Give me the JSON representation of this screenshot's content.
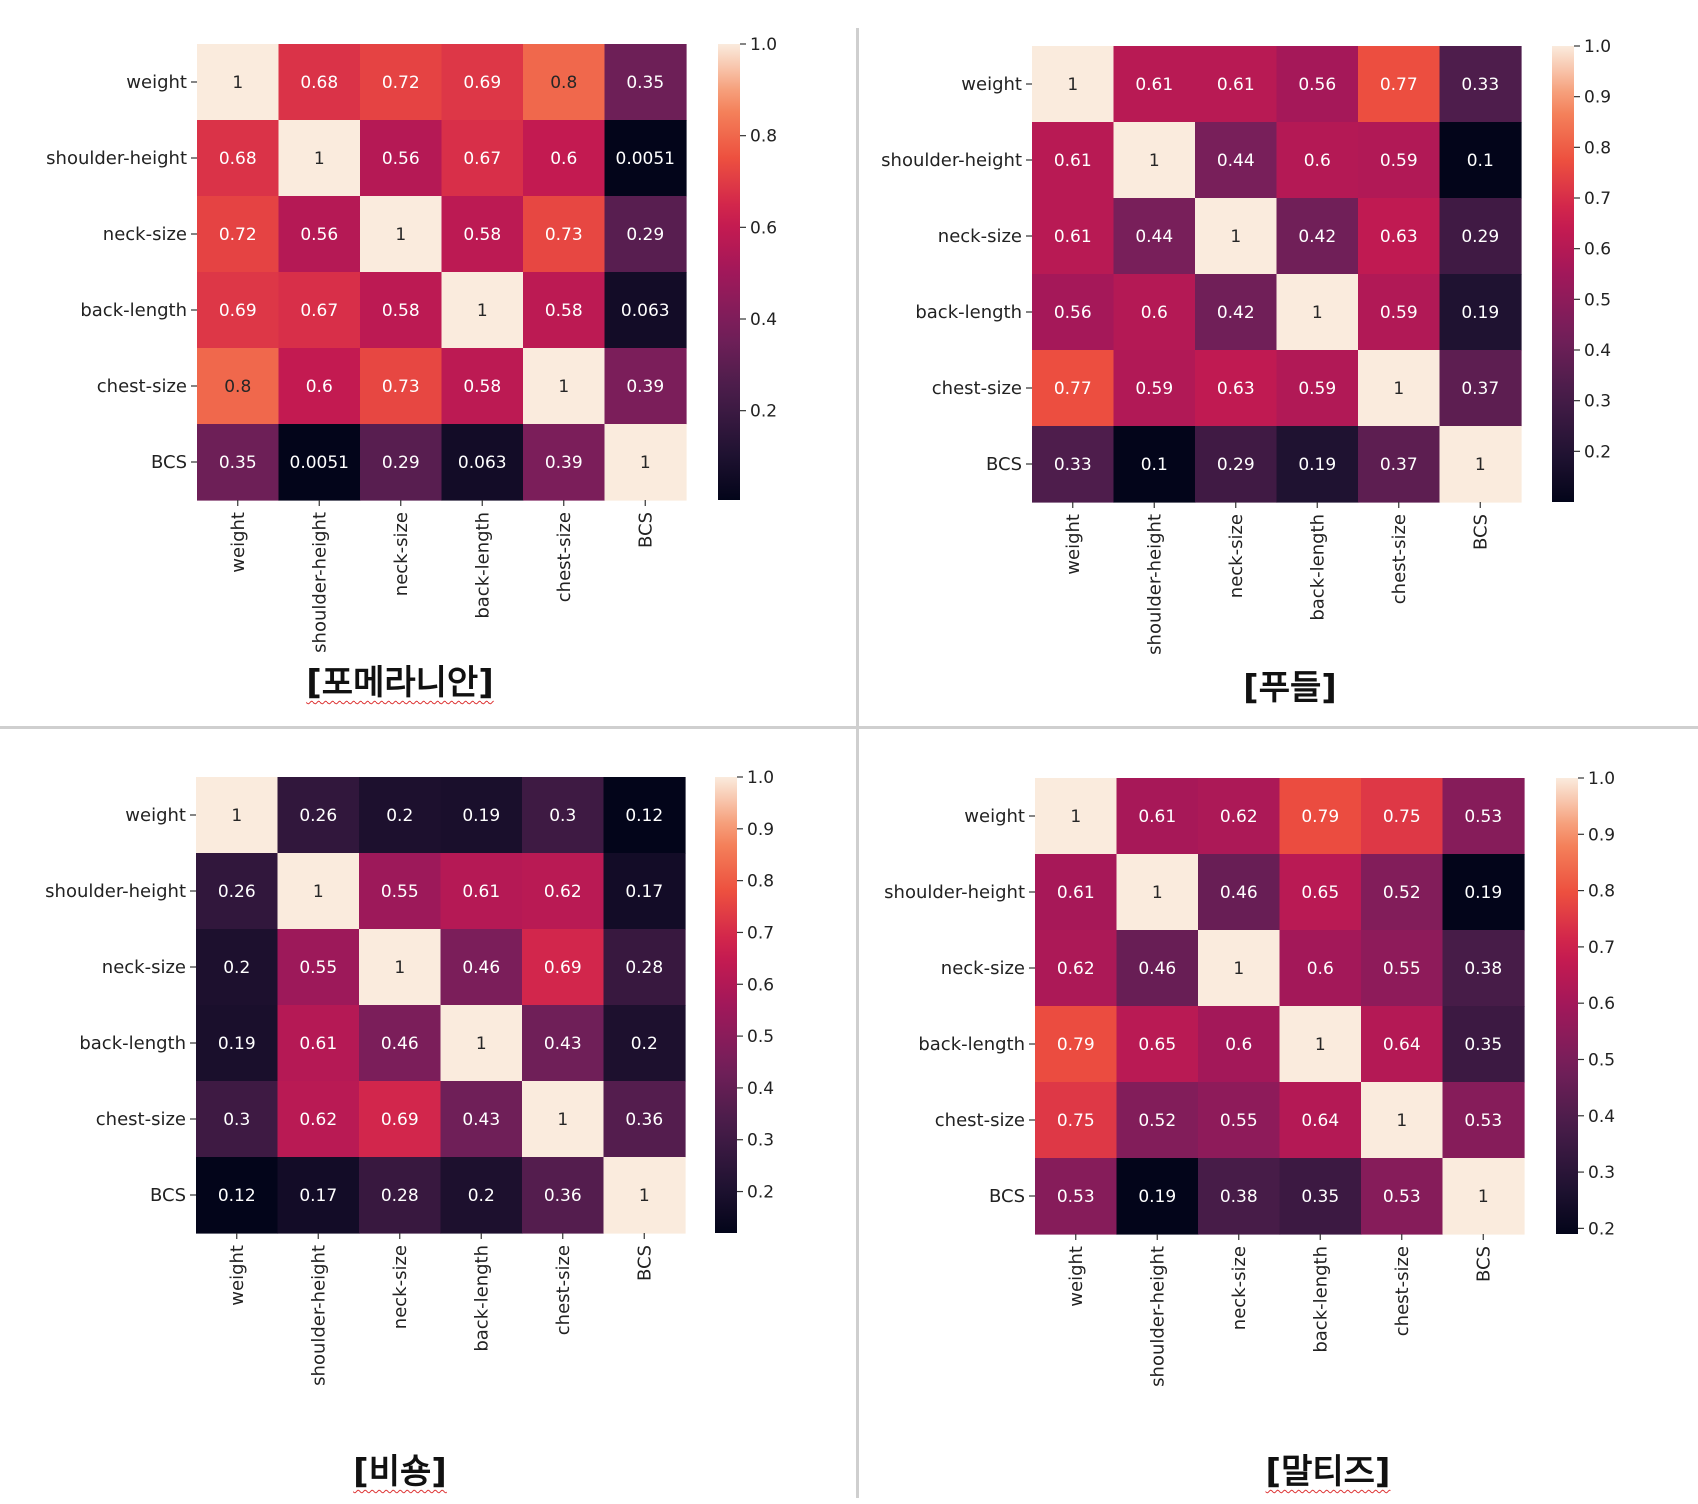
{
  "chart_data": [
    {
      "type": "heatmap",
      "caption": "[포메라니안]",
      "labels": [
        "weight",
        "shoulder-height",
        "neck-size",
        "back-length",
        "chest-size",
        "BCS"
      ],
      "values": [
        [
          1,
          0.68,
          0.72,
          0.69,
          0.8,
          0.35
        ],
        [
          0.68,
          1,
          0.56,
          0.67,
          0.6,
          0.0051
        ],
        [
          0.72,
          0.56,
          1,
          0.58,
          0.73,
          0.29
        ],
        [
          0.69,
          0.67,
          0.58,
          1,
          0.58,
          0.063
        ],
        [
          0.8,
          0.6,
          0.73,
          0.58,
          1,
          0.39
        ],
        [
          0.35,
          0.0051,
          0.29,
          0.063,
          0.39,
          1
        ]
      ],
      "cell_text": [
        [
          "1",
          "0.68",
          "0.72",
          "0.69",
          "0.8",
          "0.35"
        ],
        [
          "0.68",
          "1",
          "0.56",
          "0.67",
          "0.6",
          "0.0051"
        ],
        [
          "0.72",
          "0.56",
          "1",
          "0.58",
          "0.73",
          "0.29"
        ],
        [
          "0.69",
          "0.67",
          "0.58",
          "1",
          "0.58",
          "0.063"
        ],
        [
          "0.8",
          "0.6",
          "0.73",
          "0.58",
          "1",
          "0.39"
        ],
        [
          "0.35",
          "0.0051",
          "0.29",
          "0.063",
          "0.39",
          "1"
        ]
      ],
      "colorbar": {
        "range": [
          0.0051,
          1.0
        ],
        "ticks": [
          0.2,
          0.4,
          0.6,
          0.8,
          1.0
        ],
        "tick_labels": [
          "0.2",
          "0.4",
          "0.6",
          "0.8",
          "1.0"
        ]
      },
      "colormap": "rocket"
    },
    {
      "type": "heatmap",
      "caption": "[푸들]",
      "labels": [
        "weight",
        "shoulder-height",
        "neck-size",
        "back-length",
        "chest-size",
        "BCS"
      ],
      "values": [
        [
          1,
          0.61,
          0.61,
          0.56,
          0.77,
          0.33
        ],
        [
          0.61,
          1,
          0.44,
          0.6,
          0.59,
          0.1
        ],
        [
          0.61,
          0.44,
          1,
          0.42,
          0.63,
          0.29
        ],
        [
          0.56,
          0.6,
          0.42,
          1,
          0.59,
          0.19
        ],
        [
          0.77,
          0.59,
          0.63,
          0.59,
          1,
          0.37
        ],
        [
          0.33,
          0.1,
          0.29,
          0.19,
          0.37,
          1
        ]
      ],
      "cell_text": [
        [
          "1",
          "0.61",
          "0.61",
          "0.56",
          "0.77",
          "0.33"
        ],
        [
          "0.61",
          "1",
          "0.44",
          "0.6",
          "0.59",
          "0.1"
        ],
        [
          "0.61",
          "0.44",
          "1",
          "0.42",
          "0.63",
          "0.29"
        ],
        [
          "0.56",
          "0.6",
          "0.42",
          "1",
          "0.59",
          "0.19"
        ],
        [
          "0.77",
          "0.59",
          "0.63",
          "0.59",
          "1",
          "0.37"
        ],
        [
          "0.33",
          "0.1",
          "0.29",
          "0.19",
          "0.37",
          "1"
        ]
      ],
      "colorbar": {
        "range": [
          0.1,
          1.0
        ],
        "ticks": [
          0.2,
          0.3,
          0.4,
          0.5,
          0.6,
          0.7,
          0.8,
          0.9,
          1.0
        ],
        "tick_labels": [
          "0.2",
          "0.3",
          "0.4",
          "0.5",
          "0.6",
          "0.7",
          "0.8",
          "0.9",
          "1.0"
        ]
      },
      "colormap": "rocket"
    },
    {
      "type": "heatmap",
      "caption": "[비숑]",
      "labels": [
        "weight",
        "shoulder-height",
        "neck-size",
        "back-length",
        "chest-size",
        "BCS"
      ],
      "values": [
        [
          1,
          0.26,
          0.2,
          0.19,
          0.3,
          0.12
        ],
        [
          0.26,
          1,
          0.55,
          0.61,
          0.62,
          0.17
        ],
        [
          0.2,
          0.55,
          1,
          0.46,
          0.69,
          0.28
        ],
        [
          0.19,
          0.61,
          0.46,
          1,
          0.43,
          0.2
        ],
        [
          0.3,
          0.62,
          0.69,
          0.43,
          1,
          0.36
        ],
        [
          0.12,
          0.17,
          0.28,
          0.2,
          0.36,
          1
        ]
      ],
      "cell_text": [
        [
          "1",
          "0.26",
          "0.2",
          "0.19",
          "0.3",
          "0.12"
        ],
        [
          "0.26",
          "1",
          "0.55",
          "0.61",
          "0.62",
          "0.17"
        ],
        [
          "0.2",
          "0.55",
          "1",
          "0.46",
          "0.69",
          "0.28"
        ],
        [
          "0.19",
          "0.61",
          "0.46",
          "1",
          "0.43",
          "0.2"
        ],
        [
          "0.3",
          "0.62",
          "0.69",
          "0.43",
          "1",
          "0.36"
        ],
        [
          "0.12",
          "0.17",
          "0.28",
          "0.2",
          "0.36",
          "1"
        ]
      ],
      "colorbar": {
        "range": [
          0.12,
          1.0
        ],
        "ticks": [
          0.2,
          0.3,
          0.4,
          0.5,
          0.6,
          0.7,
          0.8,
          0.9,
          1.0
        ],
        "tick_labels": [
          "0.2",
          "0.3",
          "0.4",
          "0.5",
          "0.6",
          "0.7",
          "0.8",
          "0.9",
          "1.0"
        ]
      },
      "colormap": "rocket"
    },
    {
      "type": "heatmap",
      "caption": "[말티즈]",
      "labels": [
        "weight",
        "shoulder-height",
        "neck-size",
        "back-length",
        "chest-size",
        "BCS"
      ],
      "values": [
        [
          1,
          0.61,
          0.62,
          0.79,
          0.75,
          0.53
        ],
        [
          0.61,
          1,
          0.46,
          0.65,
          0.52,
          0.19
        ],
        [
          0.62,
          0.46,
          1,
          0.6,
          0.55,
          0.38
        ],
        [
          0.79,
          0.65,
          0.6,
          1,
          0.64,
          0.35
        ],
        [
          0.75,
          0.52,
          0.55,
          0.64,
          1,
          0.53
        ],
        [
          0.53,
          0.19,
          0.38,
          0.35,
          0.53,
          1
        ]
      ],
      "cell_text": [
        [
          "1",
          "0.61",
          "0.62",
          "0.79",
          "0.75",
          "0.53"
        ],
        [
          "0.61",
          "1",
          "0.46",
          "0.65",
          "0.52",
          "0.19"
        ],
        [
          "0.62",
          "0.46",
          "1",
          "0.6",
          "0.55",
          "0.38"
        ],
        [
          "0.79",
          "0.65",
          "0.6",
          "1",
          "0.64",
          "0.35"
        ],
        [
          "0.75",
          "0.52",
          "0.55",
          "0.64",
          "1",
          "0.53"
        ],
        [
          "0.53",
          "0.19",
          "0.38",
          "0.35",
          "0.53",
          "1"
        ]
      ],
      "colorbar": {
        "range": [
          0.19,
          1.0
        ],
        "ticks": [
          0.2,
          0.3,
          0.4,
          0.5,
          0.6,
          0.7,
          0.8,
          0.9,
          1.0
        ],
        "tick_labels": [
          "0.2",
          "0.3",
          "0.4",
          "0.5",
          "0.6",
          "0.7",
          "0.8",
          "0.9",
          "1.0"
        ]
      },
      "colormap": "rocket"
    }
  ]
}
